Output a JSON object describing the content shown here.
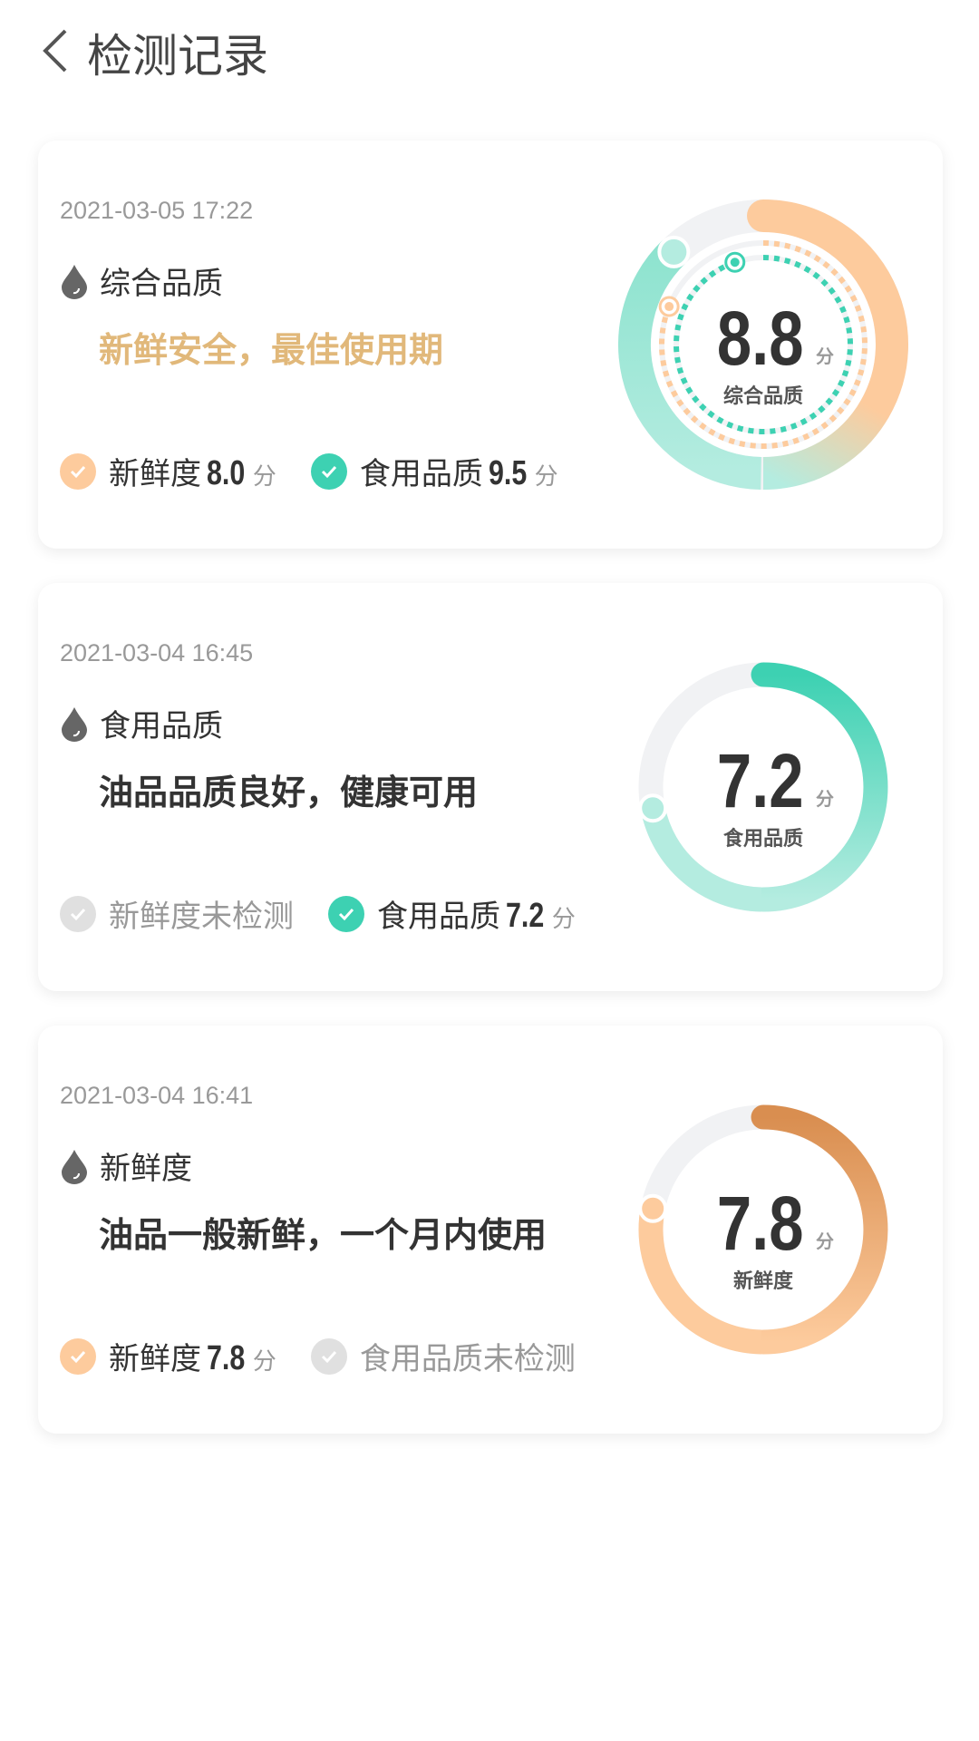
{
  "header": {
    "title": "检测记录"
  },
  "colors": {
    "orange": "#fdcb9d",
    "teal": "#3dd1b2",
    "dark_orange": "#d98e50",
    "gold": "#e1b87a",
    "track": "#f1f2f4",
    "muted_check": "#e0e0e0"
  },
  "records": [
    {
      "date": "2021-03-05 17:22",
      "type": "综合品质",
      "desc": "新鲜安全，最佳使用期",
      "score": "8.8",
      "score_unit": "分",
      "ring_label": "综合品质",
      "freshness": {
        "label": "新鲜度",
        "value": "8.0",
        "unit": "分",
        "tested": true
      },
      "quality": {
        "label": "食用品质",
        "value": "9.5",
        "unit": "分",
        "tested": true
      }
    },
    {
      "date": "2021-03-04 16:45",
      "type": "食用品质",
      "desc": "油品品质良好，健康可用",
      "score": "7.2",
      "score_unit": "分",
      "ring_label": "食用品质",
      "freshness": {
        "label": "新鲜度未检测",
        "tested": false
      },
      "quality": {
        "label": "食用品质",
        "value": "7.2",
        "unit": "分",
        "tested": true
      }
    },
    {
      "date": "2021-03-04 16:41",
      "type": "新鲜度",
      "desc": "油品一般新鲜，一个月内使用",
      "score": "7.8",
      "score_unit": "分",
      "ring_label": "新鲜度",
      "freshness": {
        "label": "新鲜度",
        "value": "7.8",
        "unit": "分",
        "tested": true
      },
      "quality": {
        "label": "食用品质未检测",
        "tested": false
      }
    }
  ]
}
